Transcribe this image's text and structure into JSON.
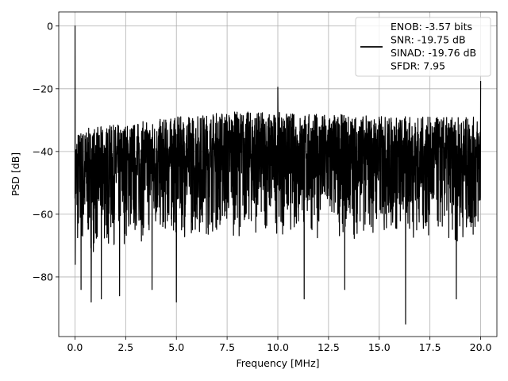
{
  "chart_data": {
    "type": "line",
    "title": "",
    "xlabel": "Frequency [MHz]",
    "ylabel": "PSD [dB]",
    "xlim": [
      -0.8,
      20.8
    ],
    "ylim": [
      -99,
      4.5
    ],
    "grid": true,
    "legend_placement": "top-right",
    "x_ticks": [
      0.0,
      2.5,
      5.0,
      7.5,
      10.0,
      12.5,
      15.0,
      17.5,
      20.0
    ],
    "x_tick_labels": [
      "0.0",
      "2.5",
      "5.0",
      "7.5",
      "10.0",
      "12.5",
      "15.0",
      "17.5",
      "20.0"
    ],
    "y_ticks": [
      0,
      -20,
      -40,
      -60,
      -80
    ],
    "y_tick_labels": [
      "0",
      "−20",
      "−40",
      "−60",
      "−80"
    ],
    "series": [
      {
        "name": "",
        "color": "#000000",
        "description_values": {
          "fundamental_peak": {
            "x": 0.0,
            "y": 0.0
          },
          "spur_peak_10MHz": {
            "x": 10.0,
            "y": -19.5
          },
          "spur_peak_20MHz": {
            "x": 20.0,
            "y": -17.5
          },
          "noise_upper_envelope": [
            [
              0.0,
              -33
            ],
            [
              2.5,
              -31
            ],
            [
              5.0,
              -29
            ],
            [
              7.5,
              -27
            ],
            [
              10.0,
              -27.5
            ],
            [
              12.5,
              -28
            ],
            [
              15.0,
              -28.5
            ],
            [
              17.5,
              -29
            ],
            [
              20.0,
              -29
            ]
          ],
          "noise_lower_envelope": [
            [
              0.0,
              -75
            ],
            [
              2.5,
              -70
            ],
            [
              5.0,
              -68
            ],
            [
              7.5,
              -67
            ],
            [
              10.0,
              -67
            ],
            [
              12.5,
              -68
            ],
            [
              15.0,
              -68
            ],
            [
              17.5,
              -69
            ],
            [
              20.0,
              -70
            ]
          ],
          "deep_minima": [
            [
              0.3,
              -84
            ],
            [
              0.8,
              -88
            ],
            [
              1.3,
              -87
            ],
            [
              2.2,
              -86
            ],
            [
              3.8,
              -84
            ],
            [
              5.0,
              -88
            ],
            [
              11.3,
              -87
            ],
            [
              13.3,
              -84
            ],
            [
              16.3,
              -95
            ],
            [
              18.8,
              -87
            ]
          ]
        }
      }
    ],
    "legend_entries": [
      "ENOB: -3.57 bits",
      "SNR: -19.75 dB",
      "SINAD: -19.76 dB",
      "SFDR: 7.95"
    ]
  }
}
